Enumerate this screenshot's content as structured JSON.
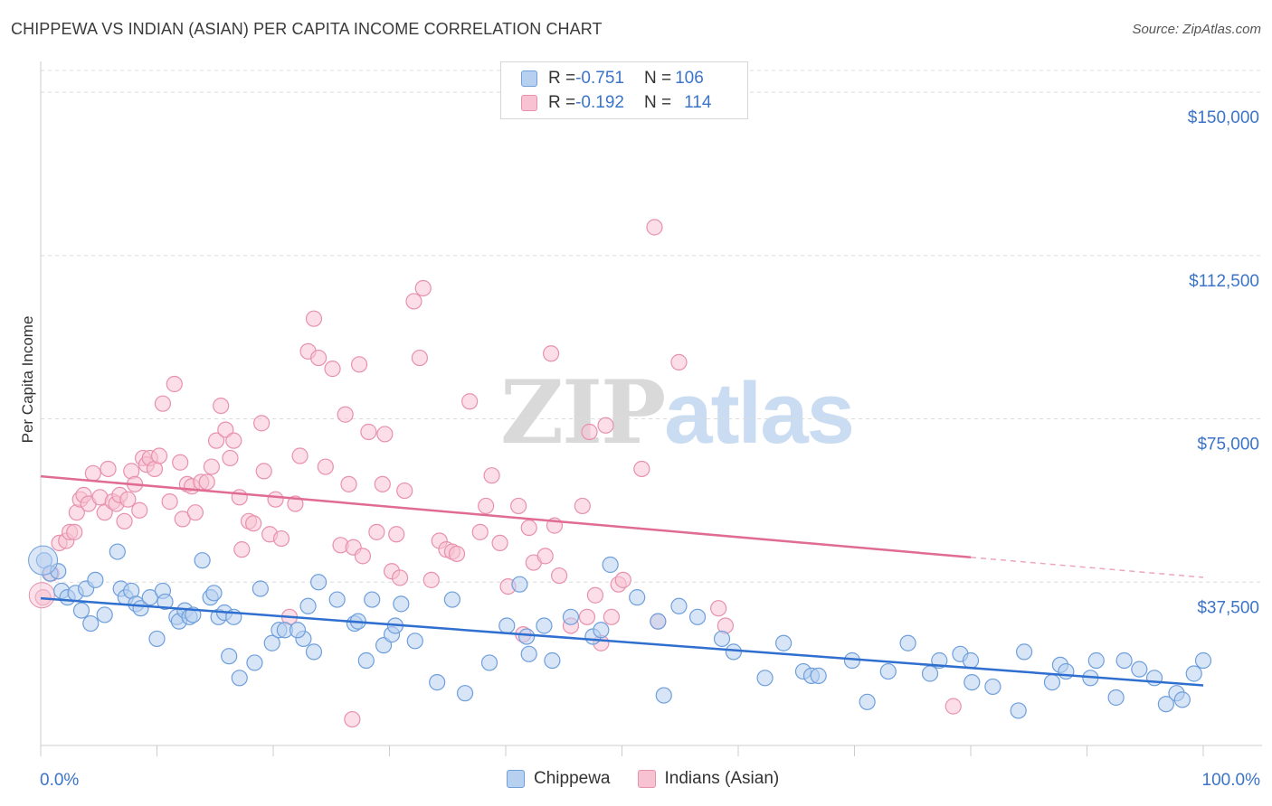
{
  "header": {
    "title": "CHIPPEWA VS INDIAN (ASIAN) PER CAPITA INCOME CORRELATION CHART",
    "source": "Source: ZipAtlas.com"
  },
  "watermark": {
    "zip": "ZIP",
    "atlas": "atlas"
  },
  "legend_top": {
    "rows": [
      {
        "r_label": "R = ",
        "r_value": "-0.751",
        "n_label": "N = ",
        "n_value": "106"
      },
      {
        "r_label": "R = ",
        "r_value": "-0.192",
        "n_label": "N = ",
        "n_value": "114"
      }
    ]
  },
  "colors": {
    "chippewa_fill": "#b8d0f0",
    "chippewa_stroke": "#6e9fdc",
    "chippewa_line": "#2f6fcf",
    "indian_fill": "#f7c3d3",
    "indian_stroke": "#e891ad",
    "indian_line": "#e06b93",
    "axis_text": "#3b74c9",
    "grid": "#dcdcdc"
  },
  "chart_data": {
    "type": "scatter",
    "title": "CHIPPEWA VS INDIAN (ASIAN) PER CAPITA INCOME CORRELATION CHART",
    "xlabel": "",
    "ylabel": "Per Capita Income",
    "xlim": [
      0,
      100
    ],
    "ylim": [
      0,
      155000
    ],
    "x_tick_labels": [
      "0.0%",
      "100.0%"
    ],
    "y_ticks": [
      37500,
      75000,
      112500,
      150000
    ],
    "y_tick_labels": [
      "$37,500",
      "$75,000",
      "$112,500",
      "$150,000"
    ],
    "grid": true,
    "legend": "bottom-center",
    "series": [
      {
        "name": "Chippewa",
        "R": -0.751,
        "N": 106,
        "trend": {
          "x": [
            0,
            100
          ],
          "y": [
            33800,
            13800
          ]
        },
        "points": [
          [
            0.3,
            42500
          ],
          [
            0.8,
            39500
          ],
          [
            1.5,
            40000
          ],
          [
            1.8,
            35500
          ],
          [
            2.3,
            34000
          ],
          [
            3.0,
            35000
          ],
          [
            3.5,
            31000
          ],
          [
            3.9,
            36000
          ],
          [
            4.3,
            28000
          ],
          [
            4.7,
            38000
          ],
          [
            5.5,
            30000
          ],
          [
            6.6,
            44500
          ],
          [
            6.9,
            36000
          ],
          [
            7.3,
            34000
          ],
          [
            7.8,
            35500
          ],
          [
            8.2,
            32500
          ],
          [
            8.6,
            31500
          ],
          [
            9.4,
            34000
          ],
          [
            10.0,
            24500
          ],
          [
            10.5,
            35500
          ],
          [
            10.7,
            33000
          ],
          [
            11.7,
            29500
          ],
          [
            11.9,
            28500
          ],
          [
            12.4,
            31000
          ],
          [
            12.8,
            29500
          ],
          [
            13.1,
            30000
          ],
          [
            13.9,
            42500
          ],
          [
            14.6,
            34000
          ],
          [
            14.9,
            35000
          ],
          [
            15.3,
            29500
          ],
          [
            15.8,
            30500
          ],
          [
            16.2,
            20500
          ],
          [
            16.6,
            29500
          ],
          [
            17.1,
            15500
          ],
          [
            18.4,
            19000
          ],
          [
            18.9,
            36000
          ],
          [
            19.9,
            23500
          ],
          [
            20.5,
            26500
          ],
          [
            21.0,
            26500
          ],
          [
            22.6,
            24500
          ],
          [
            22.1,
            26500
          ],
          [
            23.0,
            32000
          ],
          [
            23.5,
            21500
          ],
          [
            23.9,
            37500
          ],
          [
            25.5,
            33500
          ],
          [
            27.0,
            28000
          ],
          [
            27.3,
            28500
          ],
          [
            28.0,
            19500
          ],
          [
            28.5,
            33500
          ],
          [
            29.5,
            23000
          ],
          [
            30.2,
            25500
          ],
          [
            30.5,
            27500
          ],
          [
            31.0,
            32500
          ],
          [
            32.2,
            24000
          ],
          [
            34.1,
            14500
          ],
          [
            35.4,
            33500
          ],
          [
            36.5,
            12000
          ],
          [
            38.6,
            19000
          ],
          [
            40.1,
            27500
          ],
          [
            41.2,
            37000
          ],
          [
            41.8,
            25000
          ],
          [
            42.0,
            21000
          ],
          [
            43.3,
            27500
          ],
          [
            44.0,
            19500
          ],
          [
            45.6,
            29500
          ],
          [
            47.5,
            25000
          ],
          [
            48.2,
            26500
          ],
          [
            49.0,
            41500
          ],
          [
            51.3,
            34000
          ],
          [
            53.1,
            28500
          ],
          [
            53.6,
            11500
          ],
          [
            54.9,
            32000
          ],
          [
            56.5,
            29500
          ],
          [
            58.6,
            24500
          ],
          [
            59.6,
            21500
          ],
          [
            62.3,
            15500
          ],
          [
            63.9,
            23500
          ],
          [
            65.6,
            17000
          ],
          [
            66.3,
            16000
          ],
          [
            66.9,
            16000
          ],
          [
            69.8,
            19500
          ],
          [
            71.1,
            10000
          ],
          [
            72.9,
            17000
          ],
          [
            74.6,
            23500
          ],
          [
            76.5,
            16500
          ],
          [
            77.3,
            19500
          ],
          [
            79.1,
            21000
          ],
          [
            80.0,
            19500
          ],
          [
            80.1,
            14500
          ],
          [
            81.9,
            13500
          ],
          [
            84.1,
            8000
          ],
          [
            84.6,
            21500
          ],
          [
            87.0,
            14500
          ],
          [
            87.7,
            18500
          ],
          [
            88.2,
            17000
          ],
          [
            90.3,
            15500
          ],
          [
            90.8,
            19500
          ],
          [
            92.5,
            11000
          ],
          [
            93.2,
            19500
          ],
          [
            94.5,
            17500
          ],
          [
            95.8,
            15500
          ],
          [
            96.8,
            9500
          ],
          [
            97.7,
            12000
          ],
          [
            98.2,
            10500
          ],
          [
            99.2,
            16500
          ],
          [
            100.0,
            19500
          ]
        ]
      },
      {
        "name": "Indians (Asian)",
        "R": -0.192,
        "N": 114,
        "trend": {
          "x": [
            0,
            80
          ],
          "y": [
            61800,
            43200
          ]
        },
        "trend_dashed": {
          "x": [
            80,
            100
          ],
          "y": [
            43200,
            38600
          ]
        },
        "points": [
          [
            0.2,
            34000
          ],
          [
            0.9,
            39500
          ],
          [
            1.6,
            46500
          ],
          [
            2.2,
            47000
          ],
          [
            2.5,
            49000
          ],
          [
            2.9,
            49000
          ],
          [
            3.1,
            53500
          ],
          [
            3.4,
            56500
          ],
          [
            3.7,
            57500
          ],
          [
            4.1,
            55500
          ],
          [
            4.5,
            62500
          ],
          [
            5.1,
            57000
          ],
          [
            5.5,
            53500
          ],
          [
            5.8,
            63500
          ],
          [
            6.2,
            56000
          ],
          [
            6.5,
            55500
          ],
          [
            6.8,
            57500
          ],
          [
            7.2,
            51500
          ],
          [
            7.5,
            56500
          ],
          [
            7.8,
            63000
          ],
          [
            8.1,
            60000
          ],
          [
            8.5,
            54000
          ],
          [
            8.8,
            66000
          ],
          [
            9.1,
            64500
          ],
          [
            9.4,
            66000
          ],
          [
            9.8,
            63500
          ],
          [
            10.2,
            66500
          ],
          [
            10.5,
            78500
          ],
          [
            11.1,
            56000
          ],
          [
            11.5,
            83000
          ],
          [
            12.0,
            65000
          ],
          [
            12.2,
            52000
          ],
          [
            12.6,
            60000
          ],
          [
            13.0,
            59500
          ],
          [
            13.3,
            53500
          ],
          [
            13.8,
            60500
          ],
          [
            14.3,
            60500
          ],
          [
            14.7,
            64000
          ],
          [
            15.1,
            70000
          ],
          [
            15.5,
            78000
          ],
          [
            15.9,
            72500
          ],
          [
            16.3,
            66000
          ],
          [
            16.6,
            70000
          ],
          [
            17.1,
            57000
          ],
          [
            17.3,
            45000
          ],
          [
            17.9,
            51500
          ],
          [
            18.3,
            51000
          ],
          [
            19.0,
            74000
          ],
          [
            19.2,
            63000
          ],
          [
            19.7,
            48500
          ],
          [
            20.2,
            56500
          ],
          [
            20.7,
            47500
          ],
          [
            21.4,
            29500
          ],
          [
            21.9,
            55500
          ],
          [
            22.3,
            66500
          ],
          [
            23.0,
            90500
          ],
          [
            23.5,
            98000
          ],
          [
            23.9,
            89000
          ],
          [
            24.5,
            64000
          ],
          [
            25.1,
            86500
          ],
          [
            25.8,
            46000
          ],
          [
            26.2,
            76000
          ],
          [
            26.5,
            60000
          ],
          [
            26.9,
            45500
          ],
          [
            26.8,
            6000
          ],
          [
            27.4,
            87500
          ],
          [
            27.7,
            43500
          ],
          [
            28.2,
            72000
          ],
          [
            28.9,
            49000
          ],
          [
            29.4,
            60000
          ],
          [
            29.6,
            71500
          ],
          [
            30.2,
            40000
          ],
          [
            30.6,
            48500
          ],
          [
            30.9,
            38500
          ],
          [
            31.3,
            58500
          ],
          [
            32.1,
            102000
          ],
          [
            32.6,
            89000
          ],
          [
            32.9,
            105000
          ],
          [
            33.6,
            38000
          ],
          [
            34.3,
            47000
          ],
          [
            34.9,
            45000
          ],
          [
            35.4,
            44500
          ],
          [
            35.8,
            44000
          ],
          [
            36.9,
            79000
          ],
          [
            37.8,
            49000
          ],
          [
            38.3,
            55000
          ],
          [
            38.8,
            62000
          ],
          [
            39.5,
            46500
          ],
          [
            40.2,
            36500
          ],
          [
            41.1,
            55000
          ],
          [
            41.5,
            25500
          ],
          [
            42.0,
            50000
          ],
          [
            42.4,
            42000
          ],
          [
            43.4,
            43500
          ],
          [
            43.9,
            90000
          ],
          [
            44.2,
            50500
          ],
          [
            44.6,
            39000
          ],
          [
            45.6,
            27500
          ],
          [
            46.6,
            55000
          ],
          [
            47.0,
            29500
          ],
          [
            47.2,
            72000
          ],
          [
            47.7,
            34500
          ],
          [
            48.2,
            23500
          ],
          [
            48.6,
            73500
          ],
          [
            49.1,
            29500
          ],
          [
            49.7,
            37000
          ],
          [
            50.1,
            38000
          ],
          [
            51.7,
            63500
          ],
          [
            52.8,
            119000
          ],
          [
            53.1,
            28500
          ],
          [
            54.9,
            88000
          ],
          [
            58.3,
            31500
          ],
          [
            58.9,
            27500
          ],
          [
            78.5,
            9000
          ]
        ]
      }
    ]
  }
}
